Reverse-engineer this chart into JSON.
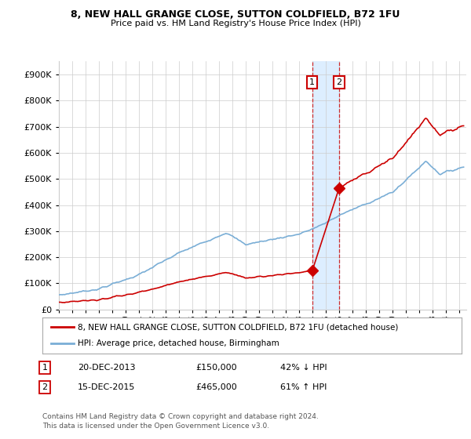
{
  "title1": "8, NEW HALL GRANGE CLOSE, SUTTON COLDFIELD, B72 1FU",
  "title2": "Price paid vs. HM Land Registry's House Price Index (HPI)",
  "ylim": [
    0,
    950000
  ],
  "yticks": [
    0,
    100000,
    200000,
    300000,
    400000,
    500000,
    600000,
    700000,
    800000,
    900000
  ],
  "ytick_labels": [
    "£0",
    "£100K",
    "£200K",
    "£300K",
    "£400K",
    "£500K",
    "£600K",
    "£700K",
    "£800K",
    "£900K"
  ],
  "bg_color": "#ffffff",
  "grid_color": "#cccccc",
  "line1_color": "#cc0000",
  "line2_color": "#7aaed6",
  "highlight_box_color": "#ddeeff",
  "transaction1_date": 2013.96,
  "transaction1_price": 150000,
  "transaction2_date": 2015.96,
  "transaction2_price": 465000,
  "legend_line1": "8, NEW HALL GRANGE CLOSE, SUTTON COLDFIELD, B72 1FU (detached house)",
  "legend_line2": "HPI: Average price, detached house, Birmingham",
  "table_row1": [
    "1",
    "20-DEC-2013",
    "£150,000",
    "42% ↓ HPI"
  ],
  "table_row2": [
    "2",
    "15-DEC-2015",
    "£465,000",
    "61% ↑ HPI"
  ],
  "footnote": "Contains HM Land Registry data © Crown copyright and database right 2024.\nThis data is licensed under the Open Government Licence v3.0."
}
